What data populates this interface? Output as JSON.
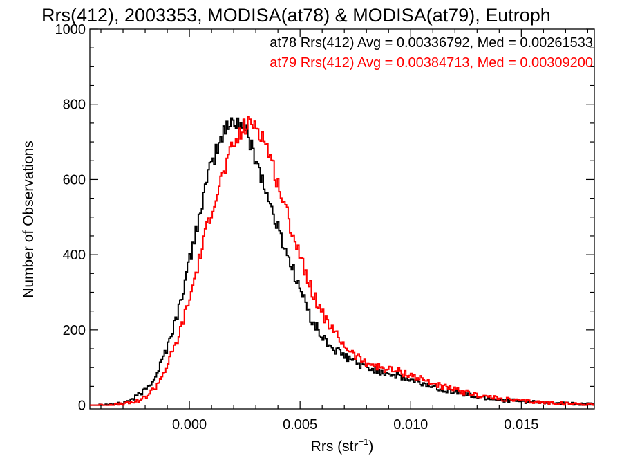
{
  "chart_data": {
    "type": "line",
    "title": "Rrs(412), 2003353, MODISA(at78) & MODISA(at79), Eutroph",
    "xlabel_main": "Rrs (str",
    "xlabel_sup": "−1",
    "xlabel_close": ")",
    "ylabel": "Number of Observations",
    "xlim": [
      -0.0045,
      0.0183
    ],
    "ylim": [
      -10,
      1000
    ],
    "x_ticks": [
      0.0,
      0.005,
      0.01,
      0.015
    ],
    "x_tick_labels": [
      "0.000",
      "0.005",
      "0.010",
      "0.015"
    ],
    "y_ticks": [
      0,
      200,
      400,
      600,
      800,
      1000
    ],
    "y_tick_labels": [
      "0",
      "200",
      "400",
      "600",
      "800",
      "1000"
    ],
    "legend_placement": "top-right",
    "grid": false,
    "series": [
      {
        "name": "at78",
        "legend_text": "at78 Rrs(412) Avg = 0.00336792, Med = 0.00261533",
        "color": "#000000",
        "x": [
          -0.0045,
          -0.004,
          -0.0035,
          -0.003,
          -0.0025,
          -0.002,
          -0.0015,
          -0.001,
          -0.0005,
          0.0,
          0.0005,
          0.001,
          0.0015,
          0.002,
          0.0025,
          0.003,
          0.0035,
          0.004,
          0.0045,
          0.005,
          0.0055,
          0.006,
          0.0065,
          0.007,
          0.0075,
          0.008,
          0.0085,
          0.009,
          0.0095,
          0.01,
          0.011,
          0.012,
          0.013,
          0.014,
          0.015,
          0.016,
          0.017,
          0.0183
        ],
        "y": [
          0,
          1,
          2,
          5,
          18,
          40,
          80,
          155,
          250,
          380,
          520,
          640,
          720,
          760,
          740,
          660,
          560,
          470,
          390,
          310,
          230,
          180,
          150,
          130,
          115,
          100,
          92,
          85,
          75,
          65,
          50,
          35,
          22,
          15,
          10,
          6,
          4,
          2
        ]
      },
      {
        "name": "at79",
        "legend_text": "at79 Rrs(412) Avg = 0.00384713, Med = 0.00309200",
        "color": "#ff0000",
        "x": [
          -0.0045,
          -0.004,
          -0.0035,
          -0.003,
          -0.0025,
          -0.002,
          -0.0015,
          -0.001,
          -0.0005,
          0.0,
          0.0005,
          0.001,
          0.0015,
          0.002,
          0.0025,
          0.003,
          0.0035,
          0.004,
          0.0045,
          0.005,
          0.0055,
          0.006,
          0.0065,
          0.007,
          0.0075,
          0.008,
          0.0085,
          0.009,
          0.0095,
          0.01,
          0.011,
          0.012,
          0.013,
          0.014,
          0.015,
          0.016,
          0.017,
          0.0183
        ],
        "y": [
          0,
          0,
          1,
          3,
          8,
          20,
          50,
          105,
          180,
          280,
          400,
          520,
          610,
          690,
          740,
          750,
          690,
          590,
          490,
          400,
          310,
          245,
          195,
          160,
          130,
          115,
          102,
          95,
          88,
          80,
          58,
          40,
          27,
          17,
          11,
          7,
          4,
          2
        ]
      }
    ]
  }
}
